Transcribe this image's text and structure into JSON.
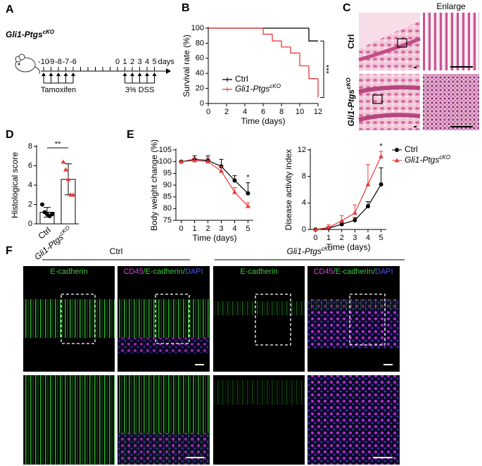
{
  "panel_labels": [
    "A",
    "B",
    "C",
    "D",
    "E",
    "F"
  ],
  "panel_a": {
    "model": {
      "text": "Gli1-Ptgs",
      "sup": "cKO"
    },
    "timeline": [
      "-10",
      "-9",
      "-8",
      "-7",
      "-6",
      "0",
      "1",
      "2",
      "3",
      "4",
      "5"
    ],
    "unit": "days",
    "treatments": [
      "Tamoxifen",
      "3% DSS"
    ]
  },
  "panel_c": {
    "column_header": "Enlarge",
    "rows": [
      {
        "text": "Ctrl"
      },
      {
        "text": "Gli1-Ptgs",
        "sup": "cKO"
      }
    ]
  },
  "panel_f": {
    "groups": [
      {
        "text": "Ctrl"
      },
      {
        "text": "Gli1-Ptgs",
        "sup": "cKO"
      }
    ],
    "stain_single": "E-cadherin",
    "stain_merge": [
      {
        "text": "CD45",
        "color": "#e040e0"
      },
      {
        "text": "/E-cadherin/",
        "color": "#3ec93e"
      },
      {
        "text": "DAPI",
        "color": "#5050ff"
      }
    ]
  },
  "chart_data": [
    {
      "type": "step",
      "xlabel": "Time (days)",
      "ylabel": "Survival rate (%)",
      "xlim": [
        0,
        12
      ],
      "xticks": [
        0,
        2,
        4,
        6,
        8,
        10,
        12
      ],
      "ylim": [
        0,
        100
      ],
      "yticks": [
        0,
        20,
        40,
        60,
        80,
        100
      ],
      "legend": "lower left",
      "annotation": "***",
      "series": [
        {
          "name": "Ctrl",
          "color": "#000000",
          "x": [
            0,
            11,
            12
          ],
          "values": [
            100,
            83,
            83
          ]
        },
        {
          "name": "Gli1-Ptgs",
          "name_sup": "cKO",
          "color": "#e8393a",
          "x": [
            0,
            6,
            7,
            8,
            9,
            10,
            11,
            12
          ],
          "values": [
            100,
            92,
            83,
            75,
            67,
            50,
            33,
            8
          ]
        }
      ]
    },
    {
      "type": "bar",
      "ylabel": "Histological score",
      "ylim": [
        0,
        8
      ],
      "yticks": [
        0,
        2,
        4,
        6,
        8
      ],
      "annotation": "**",
      "categories": [
        {
          "text": "Ctrl"
        },
        {
          "text": "Gli1-Ptgs",
          "sup": "cKO"
        }
      ],
      "values": [
        1.2,
        4.6
      ],
      "errors": [
        0.5,
        1.6
      ],
      "point_colors": [
        "#000000",
        "#e8393a"
      ],
      "points": [
        [
          2.0,
          1.2,
          1.0,
          0.8,
          1.0
        ],
        [
          6.4,
          5.6,
          4.6,
          3.0,
          3.0
        ]
      ]
    },
    {
      "type": "line",
      "xlabel": "Time (days)",
      "ylabel": "Body weight change (%)",
      "xlim": [
        -0.4,
        5.4
      ],
      "xticks": [
        0,
        1,
        2,
        3,
        4,
        5
      ],
      "ylim": [
        75,
        105
      ],
      "yticks": [
        75,
        80,
        85,
        90,
        95,
        100,
        105
      ],
      "annotation": "*",
      "series": [
        {
          "name": "Ctrl",
          "color": "#000000",
          "marker": "circle",
          "x": [
            0,
            1,
            2,
            3,
            4,
            5
          ],
          "values": [
            100,
            101,
            100.5,
            98,
            92,
            86.5
          ],
          "errors": [
            0,
            1.5,
            2,
            3,
            2,
            4.5
          ]
        },
        {
          "name": "Gli1-Ptgs",
          "name_sup": "cKO",
          "color": "#e8393a",
          "marker": "triangle",
          "x": [
            0,
            1,
            2,
            3,
            4,
            5
          ],
          "values": [
            100,
            100.5,
            100,
            96,
            87,
            81
          ],
          "errors": [
            0,
            1,
            1.5,
            2,
            2,
            1.5
          ]
        }
      ]
    },
    {
      "type": "line",
      "xlabel": "Time (days)",
      "ylabel": "Disease activity index",
      "xlim": [
        -0.4,
        5.4
      ],
      "xticks": [
        0,
        1,
        2,
        3,
        4,
        5
      ],
      "ylim": [
        0,
        12
      ],
      "yticks": [
        0,
        4,
        8,
        12
      ],
      "annotation": "*",
      "legend": "upper right",
      "series": [
        {
          "name": "Ctrl",
          "color": "#000000",
          "marker": "circle",
          "x": [
            0,
            1,
            2,
            3,
            4,
            5
          ],
          "values": [
            0,
            0.2,
            0.8,
            1.4,
            3.5,
            6.8
          ],
          "errors": [
            0,
            0.2,
            0.4,
            0.4,
            0.7,
            2.5
          ]
        },
        {
          "name": "Gli1-Ptgs",
          "name_sup": "cKO",
          "color": "#e8393a",
          "marker": "triangle",
          "x": [
            0,
            1,
            2,
            3,
            4,
            5
          ],
          "values": [
            0,
            0.3,
            1.3,
            2.5,
            6.8,
            11
          ],
          "errors": [
            0,
            0.4,
            0.8,
            1.2,
            3,
            0.8
          ]
        }
      ]
    }
  ]
}
